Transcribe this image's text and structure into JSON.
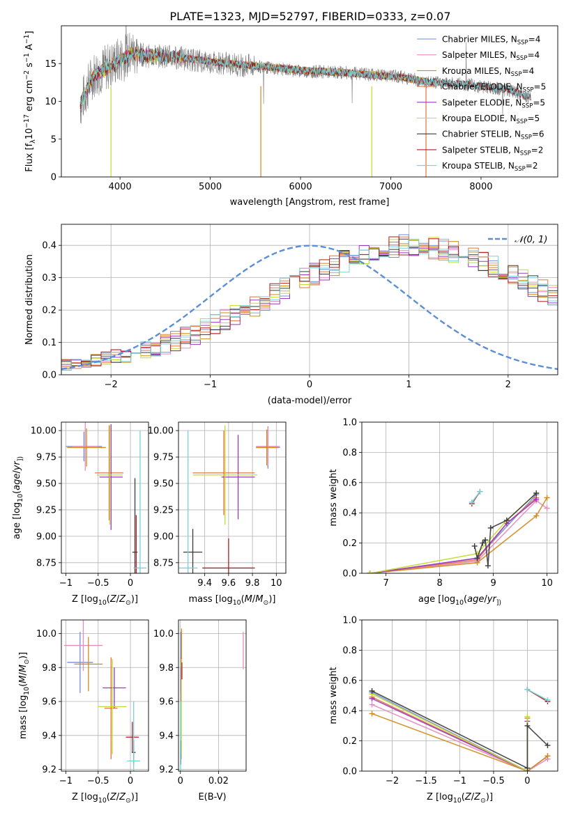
{
  "figure_title": "PLATE=1323, MJD=52797, FIBERID=0333, z=0.07",
  "model_colors": [
    "#6f8fd8",
    "#e68cbd",
    "#d08a1a",
    "#e0753f",
    "#9b36c2",
    "#c4dc2e",
    "#3a3a3a",
    "#b01e1e",
    "#76d3d8"
  ],
  "legend_models": [
    {
      "label": "Chabrier MILES, N",
      "nssp": "4"
    },
    {
      "label": "Salpeter MILES, N",
      "nssp": "4"
    },
    {
      "label": "Kroupa MILES, N",
      "nssp": "4"
    },
    {
      "label": "Chabrier ELODIE, N",
      "nssp": "5"
    },
    {
      "label": "Salpeter ELODIE, N",
      "nssp": "5"
    },
    {
      "label": "Kroupa ELODIE, N",
      "nssp": "5"
    },
    {
      "label": "Chabrier STELIB, N",
      "nssp": "6"
    },
    {
      "label": "Salpeter STELIB, N",
      "nssp": "2"
    },
    {
      "label": "Kroupa STELIB, N",
      "nssp": "2"
    }
  ],
  "nssp_sub": "SSP",
  "chart_data": [
    {
      "id": "spectrum",
      "type": "line",
      "xlabel": "wavelength [Angstrom, rest frame]",
      "ylabel_parts": [
        "Flux [f",
        "λ",
        "10",
        "−17",
        " erg cm",
        "−2",
        " s",
        "−1",
        " A",
        "−1",
        "]"
      ],
      "xlim": [
        3350,
        8850
      ],
      "ylim": [
        0,
        20
      ],
      "xticks": [
        4000,
        5000,
        6000,
        7000,
        8000
      ],
      "yticks": [
        0,
        5,
        10,
        15
      ],
      "spectrum_anchors": [
        [
          3560,
          9.5
        ],
        [
          3700,
          13.5
        ],
        [
          3850,
          14.5
        ],
        [
          4000,
          15.5
        ],
        [
          4150,
          16.5
        ],
        [
          4300,
          16.0
        ],
        [
          4500,
          16.0
        ],
        [
          4800,
          15.5
        ],
        [
          5200,
          15.0
        ],
        [
          5600,
          14.5
        ],
        [
          6000,
          14.0
        ],
        [
          6500,
          13.8
        ],
        [
          6800,
          13.5
        ],
        [
          7100,
          13.3
        ],
        [
          7400,
          12.5
        ],
        [
          7800,
          12.3
        ],
        [
          8300,
          11.5
        ],
        [
          8550,
          10.5
        ]
      ],
      "model_anchors": [
        [
          3560,
          9.5
        ],
        [
          3700,
          13.3
        ],
        [
          3850,
          14.3
        ],
        [
          4000,
          15.4
        ],
        [
          4150,
          16.4
        ],
        [
          4300,
          16.0
        ],
        [
          4500,
          16.0
        ],
        [
          4800,
          15.6
        ],
        [
          5200,
          15.0
        ],
        [
          5600,
          14.6
        ],
        [
          6000,
          14.1
        ],
        [
          6500,
          13.8
        ],
        [
          6800,
          13.5
        ],
        [
          7100,
          13.2
        ],
        [
          7400,
          12.6
        ]
      ],
      "stelib_anchors": [
        [
          3560,
          9.5
        ],
        [
          3700,
          13.3
        ],
        [
          3850,
          14.3
        ],
        [
          4000,
          15.4
        ],
        [
          4150,
          16.4
        ],
        [
          4300,
          16.0
        ],
        [
          4500,
          16.0
        ],
        [
          4800,
          15.6
        ],
        [
          5200,
          15.0
        ],
        [
          5600,
          14.6
        ],
        [
          6000,
          14.1
        ],
        [
          6500,
          13.8
        ],
        [
          6800,
          13.5
        ],
        [
          7100,
          13.2
        ],
        [
          7400,
          12.6
        ],
        [
          7800,
          12.3
        ],
        [
          8300,
          11.6
        ],
        [
          8550,
          10.5
        ]
      ]
    },
    {
      "id": "residuals",
      "type": "histogram",
      "xlabel": "(data-model)/error",
      "ylabel": "Normed distribution",
      "xlim": [
        -2.5,
        2.5
      ],
      "ylim": [
        0,
        0.465
      ],
      "xticks": [
        -2,
        -1,
        0,
        1,
        2
      ],
      "yticks": [
        0.0,
        0.1,
        0.2,
        0.3,
        0.4
      ],
      "bin_width": 0.1,
      "bin_start": -2.5,
      "legend": "𝒩(0, 1)",
      "base_values": [
        0.03,
        0.032,
        0.04,
        0.047,
        0.049,
        0.055,
        0.06,
        0.067,
        0.075,
        0.085,
        0.094,
        0.104,
        0.115,
        0.128,
        0.14,
        0.155,
        0.17,
        0.185,
        0.2,
        0.215,
        0.232,
        0.25,
        0.265,
        0.28,
        0.295,
        0.31,
        0.322,
        0.335,
        0.35,
        0.362,
        0.372,
        0.382,
        0.39,
        0.395,
        0.398,
        0.4,
        0.397,
        0.392,
        0.385,
        0.378,
        0.37,
        0.358,
        0.345,
        0.332,
        0.318,
        0.304,
        0.29,
        0.276,
        0.26,
        0.245,
        0.23,
        0.214,
        0.199,
        0.184,
        0.168,
        0.154,
        0.14,
        0.127,
        0.114,
        0.102,
        0.091,
        0.081,
        0.072,
        0.064,
        0.057,
        0.05,
        0.045,
        0.04,
        0.036,
        0.032,
        0.029,
        0.026,
        0.024,
        0.022,
        0.02,
        0.019,
        0.018,
        0.017,
        0.016,
        0.015
      ]
    },
    {
      "id": "age_vs_Z",
      "type": "errorbar",
      "xlabel_parts": [
        "Z [log",
        "10",
        "(",
        "Z",
        "/",
        "Z",
        "⊙",
        ")]"
      ],
      "ylabel_parts": [
        "age  [log",
        "10",
        "(",
        "age",
        "/",
        "yr",
        "])"
      ],
      "xlim": [
        -1.07,
        0.28
      ],
      "ylim": [
        8.65,
        10.08
      ],
      "xticks": [
        -1.0,
        -0.5,
        0.0
      ],
      "yticks": [
        8.75,
        9.0,
        9.25,
        9.5,
        9.75,
        10.0
      ],
      "points": [
        {
          "m": 0,
          "x": -0.72,
          "xe": 0.28,
          "y": 9.85,
          "ye": 0.14
        },
        {
          "m": 1,
          "x": -0.7,
          "xe": 0.2,
          "y": 9.85,
          "ye": 0.23
        },
        {
          "m": 2,
          "x": -0.68,
          "xe": 0.3,
          "y": 9.84,
          "ye": 0.18
        },
        {
          "m": 3,
          "x": -0.33,
          "xe": 0.22,
          "y": 9.6,
          "ye": 0.45
        },
        {
          "m": 4,
          "x": -0.3,
          "xe": 0.18,
          "y": 9.56,
          "ye": 0.5
        },
        {
          "m": 5,
          "x": -0.32,
          "xe": 0.2,
          "y": 9.58,
          "ye": 0.47
        },
        {
          "m": 6,
          "x": 0.07,
          "xe": 0.04,
          "y": 8.85,
          "ye": 0.7
        },
        {
          "m": 7,
          "x": 0.09,
          "xe": 0.04,
          "y": 8.7,
          "ye": 0.5
        },
        {
          "m": 8,
          "x": 0.15,
          "xe": 0.1,
          "y": 8.7,
          "ye": 1.3
        }
      ]
    },
    {
      "id": "age_vs_mass",
      "type": "errorbar",
      "xlabel_parts": [
        "mass [log",
        "10",
        "(",
        "M",
        "/",
        "M",
        "⊙",
        ")]"
      ],
      "ylabel_parts": [],
      "xlim": [
        9.18,
        10.08
      ],
      "ylim": [
        8.65,
        10.08
      ],
      "xticks": [
        9.4,
        9.6,
        9.8,
        10.0
      ],
      "yticks": [
        8.75,
        9.0,
        9.25,
        9.5,
        9.75,
        10.0
      ],
      "ytick_labels": true,
      "points": [
        {
          "m": 0,
          "x": 9.93,
          "xe": 0.1,
          "y": 9.84,
          "ye": 0.2
        },
        {
          "m": 1,
          "x": 9.93,
          "xe": 0.1,
          "y": 9.85,
          "ye": 0.18
        },
        {
          "m": 2,
          "x": 9.92,
          "xe": 0.09,
          "y": 9.84,
          "ye": 0.17
        },
        {
          "m": 3,
          "x": 9.56,
          "xe": 0.26,
          "y": 9.6,
          "ye": 0.4
        },
        {
          "m": 4,
          "x": 9.68,
          "xe": 0.14,
          "y": 9.56,
          "ye": 0.4
        },
        {
          "m": 5,
          "x": 9.57,
          "xe": 0.27,
          "y": 9.58,
          "ye": 0.47
        },
        {
          "m": 6,
          "x": 9.3,
          "xe": 0.08,
          "y": 8.85,
          "ye": 0.22
        },
        {
          "m": 7,
          "x": 9.6,
          "xe": 0.22,
          "y": 8.7,
          "ye": 0.28
        },
        {
          "m": 8,
          "x": 9.26,
          "xe": 0.08,
          "y": 8.7,
          "ye": 1.3
        }
      ]
    },
    {
      "id": "weight_vs_age",
      "type": "line",
      "xlabel_parts": [
        "age  [log",
        "10",
        "(",
        "age",
        "/",
        "yr",
        "])"
      ],
      "ylabel": "mass weight",
      "xlim": [
        6.55,
        10.2
      ],
      "ylim": [
        0,
        1.0
      ],
      "xticks": [
        7,
        8,
        9,
        10
      ],
      "yticks": [
        0.0,
        0.2,
        0.4,
        0.6,
        0.8,
        1.0
      ],
      "series": [
        {
          "m": 0,
          "points": [
            [
              6.7,
              0.0
            ],
            [
              8.7,
              0.1
            ],
            [
              9.8,
              0.52
            ]
          ]
        },
        {
          "m": 1,
          "points": [
            [
              6.7,
              0.0
            ],
            [
              8.7,
              0.08
            ],
            [
              9.8,
              0.48
            ],
            [
              10.0,
              0.43
            ]
          ]
        },
        {
          "m": 2,
          "points": [
            [
              6.7,
              0.0
            ],
            [
              8.7,
              0.07
            ],
            [
              9.8,
              0.38
            ],
            [
              10.0,
              0.5
            ]
          ]
        },
        {
          "m": 3,
          "points": [
            [
              6.7,
              0.0
            ],
            [
              8.7,
              0.09
            ],
            [
              9.25,
              0.33
            ],
            [
              9.8,
              0.5
            ]
          ]
        },
        {
          "m": 4,
          "points": [
            [
              6.7,
              0.0
            ],
            [
              8.7,
              0.1
            ],
            [
              9.25,
              0.33
            ],
            [
              9.8,
              0.49
            ]
          ]
        },
        {
          "m": 5,
          "points": [
            [
              6.7,
              0.0
            ],
            [
              8.7,
              0.13
            ],
            [
              9.25,
              0.35
            ],
            [
              9.8,
              0.53
            ]
          ]
        },
        {
          "m": 6,
          "points": [
            [
              8.65,
              0.18
            ],
            [
              8.7,
              0.1
            ],
            [
              8.8,
              0.2
            ],
            [
              8.85,
              0.22
            ],
            [
              8.9,
              0.05
            ],
            [
              8.95,
              0.3
            ],
            [
              9.25,
              0.35
            ],
            [
              9.8,
              0.53
            ]
          ]
        },
        {
          "m": 7,
          "points": [
            [
              8.6,
              0.46
            ],
            [
              8.75,
              0.54
            ]
          ]
        },
        {
          "m": 8,
          "points": [
            [
              8.6,
              0.47
            ],
            [
              8.75,
              0.54
            ]
          ]
        }
      ]
    },
    {
      "id": "mass_vs_Z",
      "type": "errorbar",
      "xlabel_parts": [
        "Z [log",
        "10",
        "(",
        "Z",
        "/",
        "Z",
        "⊙",
        ")]"
      ],
      "ylabel_parts": [
        "mass [log",
        "10",
        "(",
        "M",
        "/",
        "M",
        "⊙",
        ")]"
      ],
      "xlim": [
        -1.07,
        0.28
      ],
      "ylim": [
        9.19,
        10.08
      ],
      "xticks": [
        -1.0,
        -0.5,
        0.0
      ],
      "yticks": [
        9.2,
        9.4,
        9.6,
        9.8,
        10.0
      ],
      "points": [
        {
          "m": 0,
          "x": -0.78,
          "xe": 0.2,
          "y": 9.83,
          "ye": 0.18
        },
        {
          "m": 1,
          "x": -0.73,
          "xe": 0.3,
          "y": 9.93,
          "ye": 0.15
        },
        {
          "m": 2,
          "x": -0.65,
          "xe": 0.22,
          "y": 9.82,
          "ye": 0.16
        },
        {
          "m": 3,
          "x": -0.3,
          "xe": 0.1,
          "y": 9.56,
          "ye": 0.3
        },
        {
          "m": 4,
          "x": -0.25,
          "xe": 0.18,
          "y": 9.68,
          "ye": 0.12
        },
        {
          "m": 5,
          "x": -0.28,
          "xe": 0.22,
          "y": 9.57,
          "ye": 0.28
        },
        {
          "m": 6,
          "x": 0.05,
          "xe": 0.03,
          "y": 9.3,
          "ye": 0.07
        },
        {
          "m": 7,
          "x": 0.03,
          "xe": 0.1,
          "y": 9.39,
          "ye": 0.09
        },
        {
          "m": 8,
          "x": 0.05,
          "xe": 0.1,
          "y": 9.25,
          "ye": 0.35
        }
      ]
    },
    {
      "id": "mass_vs_EBV",
      "type": "errorbar",
      "xlabel": "E(B-V)",
      "xlim": [
        -0.001,
        0.0345
      ],
      "ylim": [
        9.19,
        10.08
      ],
      "xticks": [
        0.0,
        0.02
      ],
      "yticks": [
        9.2,
        9.4,
        9.6,
        9.8,
        10.0
      ],
      "points": [
        {
          "m": 0,
          "x": 0.0002,
          "xe": 0,
          "y": 9.83,
          "ye": 0.18
        },
        {
          "m": 1,
          "x": 0.033,
          "xe": 0,
          "y": 9.9,
          "ye": 0.11
        },
        {
          "m": 2,
          "x": 0.0006,
          "xe": 0,
          "y": 9.88,
          "ye": 0.15
        },
        {
          "m": 3,
          "x": 0.0004,
          "xe": 0,
          "y": 9.56,
          "ye": 0.3
        },
        {
          "m": 4,
          "x": 0.0003,
          "xe": 0,
          "y": 9.68,
          "ye": 0.12
        },
        {
          "m": 5,
          "x": 0.0005,
          "xe": 0,
          "y": 9.57,
          "ye": 0.28
        },
        {
          "m": 6,
          "x": 0.0002,
          "xe": 0,
          "y": 9.3,
          "ye": 0.07
        },
        {
          "m": 7,
          "x": 0.0008,
          "xe": 0,
          "y": 9.78,
          "ye": 0.05
        },
        {
          "m": 8,
          "x": 0.0001,
          "xe": 0,
          "y": 9.25,
          "ye": 0.35
        }
      ]
    },
    {
      "id": "weight_vs_Z",
      "type": "line",
      "xlabel_parts": [
        "Z [log",
        "10",
        "(",
        "Z",
        "/",
        "Z",
        "⊙",
        ")]"
      ],
      "ylabel": "mass weight",
      "xlim": [
        -2.45,
        0.45
      ],
      "ylim": [
        0,
        1.0
      ],
      "xticks": [
        -2.0,
        -1.5,
        -1.0,
        -0.5,
        0.0
      ],
      "yticks": [
        0.0,
        0.2,
        0.4,
        0.6,
        0.8,
        1.0
      ],
      "series": [
        {
          "m": 0,
          "points": [
            [
              -2.3,
              0.52
            ],
            [
              0.0,
              0.0
            ],
            [
              0.3,
              0.1
            ]
          ]
        },
        {
          "m": 1,
          "points": [
            [
              -2.3,
              0.44
            ],
            [
              0.0,
              0.0
            ],
            [
              0.3,
              0.08
            ]
          ]
        },
        {
          "m": 2,
          "points": [
            [
              -2.3,
              0.38
            ],
            [
              0.0,
              0.0
            ],
            [
              0.3,
              0.1
            ]
          ]
        },
        {
          "m": 3,
          "points": [
            [
              -2.3,
              0.49
            ],
            [
              0.0,
              0.0
            ],
            [
              0.0,
              0.35
            ]
          ]
        },
        {
          "m": 4,
          "points": [
            [
              -2.3,
              0.48
            ],
            [
              0.0,
              0.0
            ],
            [
              0.0,
              0.33
            ]
          ]
        },
        {
          "m": 5,
          "points": [
            [
              -2.3,
              0.51
            ],
            [
              0.0,
              0.0
            ],
            [
              0.0,
              0.36
            ]
          ]
        },
        {
          "m": 6,
          "points": [
            [
              -2.3,
              0.53
            ],
            [
              0.0,
              0.02
            ],
            [
              0.0,
              0.3
            ],
            [
              0.3,
              0.17
            ]
          ]
        },
        {
          "m": 7,
          "points": [
            [
              0.0,
              0.54
            ],
            [
              0.3,
              0.46
            ]
          ]
        },
        {
          "m": 8,
          "points": [
            [
              0.0,
              0.54
            ],
            [
              0.3,
              0.47
            ]
          ]
        }
      ]
    }
  ]
}
